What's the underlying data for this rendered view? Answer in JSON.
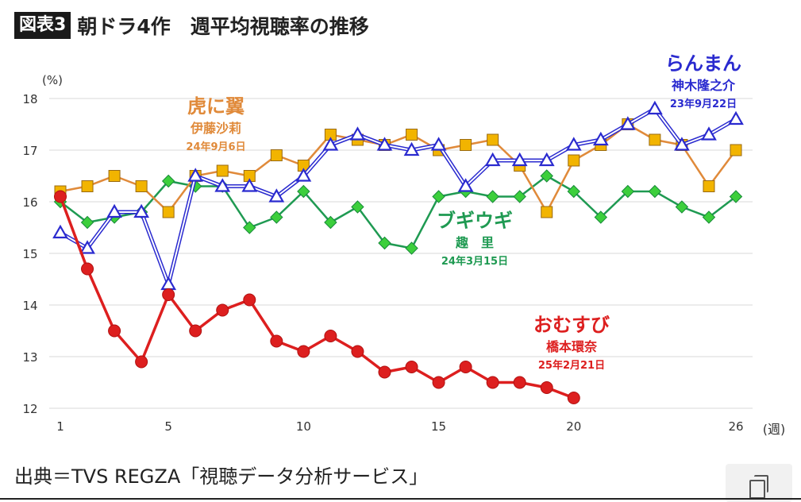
{
  "header": {
    "badge": "図表3",
    "title": "朝ドラ4作　週平均視聴率の推移"
  },
  "source": "出典＝TVS REGZA「視聴データ分析サービス」",
  "chart_data": {
    "type": "line",
    "ylabel": "(%)",
    "xlabel": "(週)",
    "ylim": [
      12,
      18
    ],
    "xlim": [
      1,
      26
    ],
    "y_ticks": [
      "12",
      "13",
      "14",
      "15",
      "16",
      "17",
      "18"
    ],
    "x_ticks": [
      "1",
      "5",
      "10",
      "15",
      "20",
      "26"
    ],
    "grid": true,
    "series": [
      {
        "key": "toranitsubasa",
        "color": "#e08a3a",
        "marker": "square",
        "marker_fill": "#f2b400",
        "label": [
          "虎に翼",
          "伊藤沙莉",
          "24年9月6日"
        ],
        "x": [
          1,
          2,
          3,
          4,
          5,
          6,
          7,
          8,
          9,
          10,
          11,
          12,
          13,
          14,
          15,
          16,
          17,
          18,
          19,
          20,
          21,
          22,
          23,
          24,
          25,
          26
        ],
        "values": [
          16.2,
          16.3,
          16.5,
          16.3,
          15.8,
          16.5,
          16.6,
          16.5,
          16.9,
          16.7,
          17.3,
          17.2,
          17.1,
          17.3,
          17.0,
          17.1,
          17.2,
          16.7,
          15.8,
          16.8,
          17.1,
          17.5,
          17.2,
          17.1,
          16.3,
          17.0
        ]
      },
      {
        "key": "ranman",
        "color": "#2a2acf",
        "marker": "triangle",
        "marker_fill": "#ffffff",
        "label": [
          "らんまん",
          "神木隆之介",
          "23年9月22日"
        ],
        "x": [
          1,
          2,
          3,
          4,
          5,
          6,
          7,
          8,
          9,
          10,
          11,
          12,
          13,
          14,
          15,
          16,
          17,
          18,
          19,
          20,
          21,
          22,
          23,
          24,
          25,
          26
        ],
        "values": [
          15.4,
          15.1,
          15.8,
          15.8,
          14.4,
          16.5,
          16.3,
          16.3,
          16.1,
          16.5,
          17.1,
          17.3,
          17.1,
          17.0,
          17.1,
          16.3,
          16.8,
          16.8,
          16.8,
          17.1,
          17.2,
          17.5,
          17.8,
          17.1,
          17.3,
          17.6
        ]
      },
      {
        "key": "boogiewoogie",
        "color": "#1f9a52",
        "marker": "diamond",
        "marker_fill": "#3ccf3c",
        "label": [
          "ブギウギ",
          "趣　里",
          "24年3月15日"
        ],
        "x": [
          1,
          2,
          3,
          4,
          5,
          6,
          7,
          8,
          9,
          10,
          11,
          12,
          13,
          14,
          15,
          16,
          17,
          18,
          19,
          20,
          21,
          22,
          23,
          24,
          25,
          26
        ],
        "values": [
          16.0,
          15.6,
          15.7,
          15.8,
          16.4,
          16.3,
          16.3,
          15.5,
          15.7,
          16.2,
          15.6,
          15.9,
          15.2,
          15.1,
          16.1,
          16.2,
          16.1,
          16.1,
          16.5,
          16.2,
          15.7,
          16.2,
          16.2,
          15.9,
          15.7,
          16.1
        ]
      },
      {
        "key": "omusubi",
        "color": "#dd1f1f",
        "marker": "circle",
        "marker_fill": "#dd1f1f",
        "label": [
          "おむすび",
          "橋本環奈",
          "25年2月21日"
        ],
        "x": [
          1,
          2,
          3,
          4,
          5,
          6,
          7,
          8,
          9,
          10,
          11,
          12,
          13,
          14,
          15,
          16,
          17,
          18,
          19,
          20
        ],
        "values": [
          16.1,
          14.7,
          13.5,
          12.9,
          14.2,
          13.5,
          13.9,
          14.1,
          13.3,
          13.1,
          13.4,
          13.1,
          12.7,
          12.8,
          12.5,
          12.8,
          12.5,
          12.5,
          12.4,
          12.2
        ]
      }
    ]
  }
}
